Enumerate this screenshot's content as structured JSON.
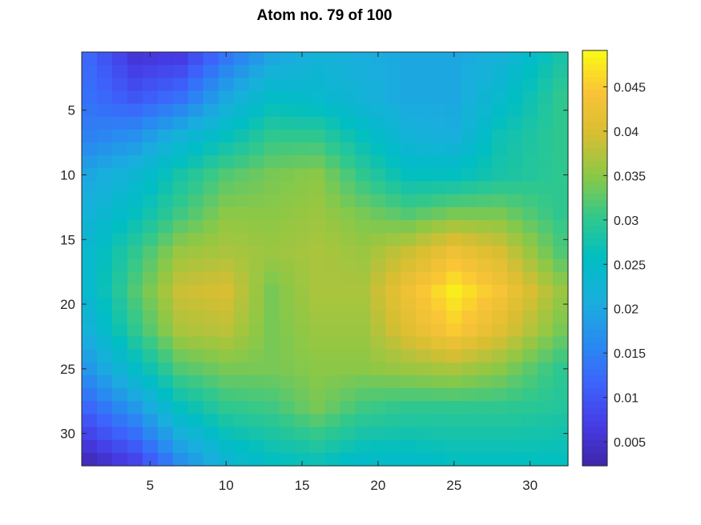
{
  "chart_data": {
    "type": "heatmap",
    "title": "Atom no. 79 of 100",
    "xlabel": "",
    "ylabel": "",
    "rows": 32,
    "cols": 32,
    "xlim": [
      0.5,
      32.5
    ],
    "ylim": [
      0.5,
      32.5
    ],
    "y_reversed": true,
    "x_ticks": [
      5,
      10,
      15,
      20,
      25,
      30
    ],
    "y_ticks": [
      5,
      10,
      15,
      20,
      25,
      30
    ],
    "colormap": "parula",
    "colorbar": {
      "range": [
        0.0023,
        0.0491
      ],
      "ticks": [
        0.005,
        0.01,
        0.015,
        0.02,
        0.025,
        0.03,
        0.035,
        0.04,
        0.045
      ],
      "tick_labels": [
        "0.005",
        "0.01",
        "0.015",
        "0.02",
        "0.025",
        "0.03",
        "0.035",
        "0.04",
        "0.045"
      ]
    },
    "grid": false,
    "control_points": {
      "cols": [
        1,
        4,
        7,
        10,
        13,
        16,
        19,
        22,
        25,
        28,
        32
      ],
      "rows": [
        1,
        4,
        7,
        10,
        13,
        16,
        19,
        22,
        25,
        28,
        32
      ],
      "values": [
        [
          0.012,
          0.006,
          0.007,
          0.014,
          0.02,
          0.022,
          0.021,
          0.02,
          0.02,
          0.022,
          0.028
        ],
        [
          0.013,
          0.01,
          0.013,
          0.02,
          0.025,
          0.024,
          0.022,
          0.02,
          0.02,
          0.024,
          0.03
        ],
        [
          0.015,
          0.017,
          0.022,
          0.026,
          0.03,
          0.03,
          0.026,
          0.022,
          0.021,
          0.027,
          0.03
        ],
        [
          0.02,
          0.023,
          0.028,
          0.032,
          0.034,
          0.035,
          0.03,
          0.026,
          0.026,
          0.028,
          0.03
        ],
        [
          0.022,
          0.026,
          0.031,
          0.035,
          0.035,
          0.036,
          0.034,
          0.032,
          0.034,
          0.034,
          0.03
        ],
        [
          0.024,
          0.03,
          0.036,
          0.037,
          0.036,
          0.037,
          0.036,
          0.039,
          0.043,
          0.04,
          0.032
        ],
        [
          0.024,
          0.032,
          0.039,
          0.04,
          0.034,
          0.037,
          0.037,
          0.043,
          0.048,
          0.044,
          0.036
        ],
        [
          0.022,
          0.03,
          0.037,
          0.038,
          0.034,
          0.036,
          0.036,
          0.041,
          0.045,
          0.041,
          0.034
        ],
        [
          0.018,
          0.025,
          0.032,
          0.034,
          0.034,
          0.035,
          0.035,
          0.036,
          0.037,
          0.035,
          0.03
        ],
        [
          0.012,
          0.018,
          0.026,
          0.03,
          0.031,
          0.034,
          0.031,
          0.03,
          0.03,
          0.03,
          0.029
        ],
        [
          0.004,
          0.008,
          0.017,
          0.023,
          0.026,
          0.027,
          0.025,
          0.025,
          0.026,
          0.026,
          0.026
        ]
      ]
    }
  }
}
